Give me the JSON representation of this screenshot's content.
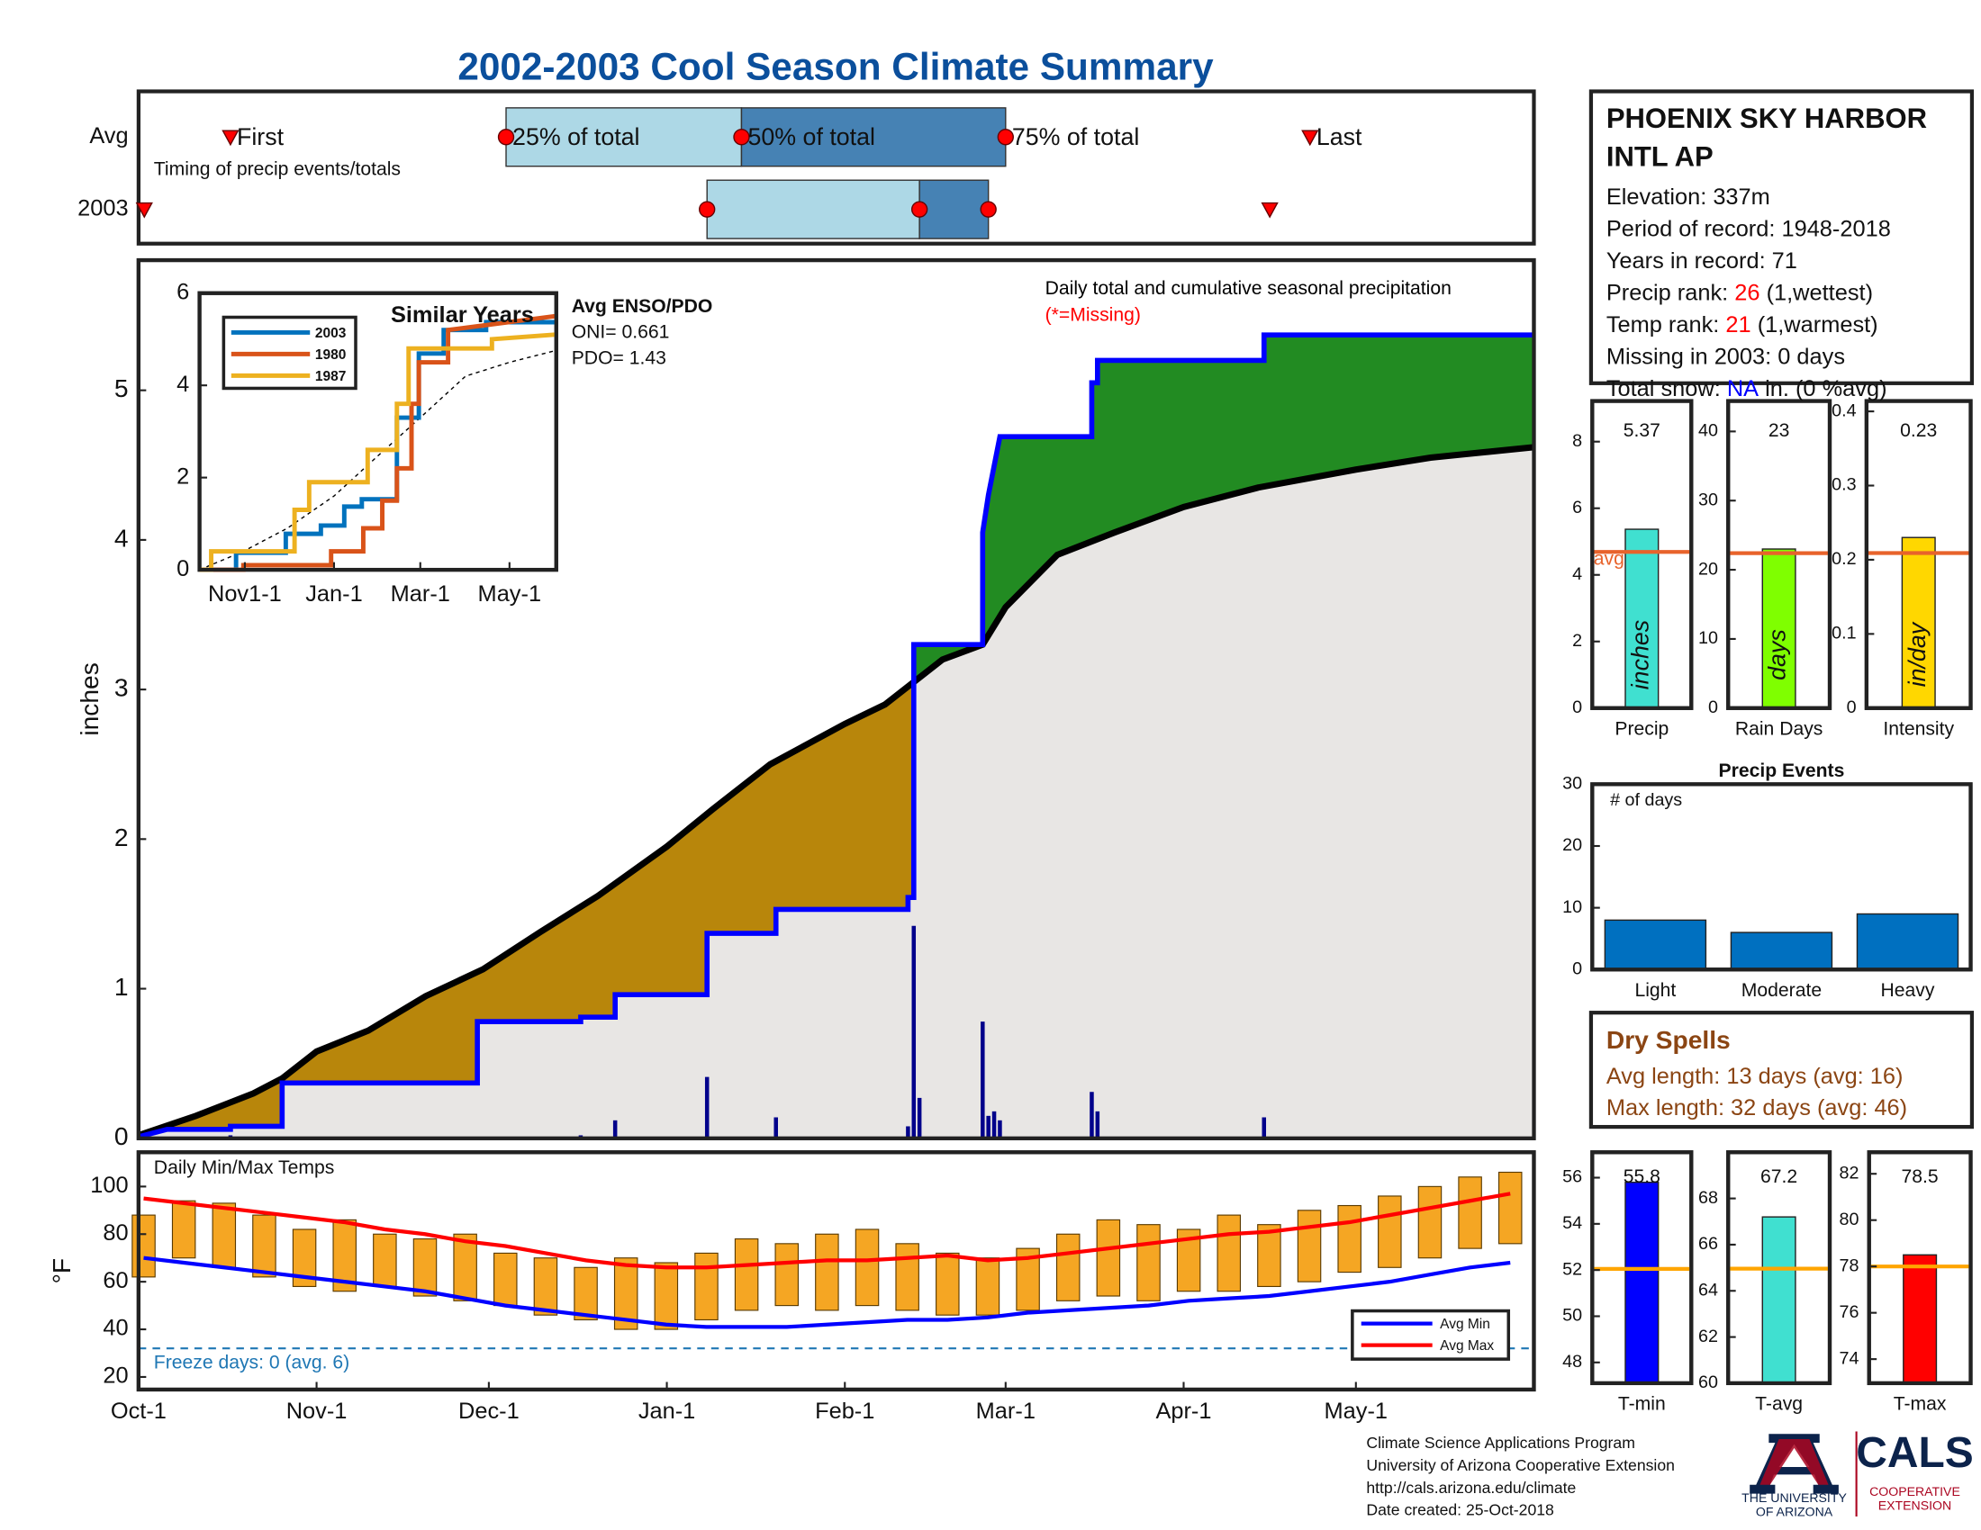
{
  "title": "2002-2003 Cool Season Climate Summary",
  "station": {
    "title": [
      "PHOENIX SKY HARBOR",
      "INTL AP"
    ],
    "lines": [
      [
        {
          "text": "Elevation: 337m"
        }
      ],
      [
        {
          "text": "Period of record: 1948-2018"
        }
      ],
      [
        {
          "text": "Years in record: 71"
        }
      ],
      [
        {
          "text": "Precip rank:"
        },
        {
          "text": "26",
          "color": "#ff0000"
        },
        {
          "text": "(1,wettest)"
        }
      ],
      [
        {
          "text": "Temp rank:"
        },
        {
          "text": "21",
          "color": "#ff0000"
        },
        {
          "text": "(1,warmest)"
        }
      ],
      [
        {
          "text": "Missing in 2003: 0 days"
        }
      ],
      [
        {
          "text": "Total snow:"
        },
        {
          "text": "NA",
          "color": "#0000ff"
        },
        {
          "text": "in. (0 %avg)"
        }
      ]
    ]
  },
  "dry_spells": {
    "title": "Dry Spells",
    "color": "#8b4513",
    "lines": [
      "Avg length: 13 days (avg: 16)",
      "Max length: 32 days (avg: 46)"
    ]
  },
  "footer": [
    "Climate Science Applications Program",
    "University of Arizona Cooperative Extension",
    "http://cals.arizona.edu/climate",
    "Date created: 25-Oct-2018"
  ],
  "logo": {
    "ua": [
      "THE UNIVERSITY",
      "OF ARIZONA"
    ],
    "cals": "CALS",
    "ext": [
      "COOPERATIVE",
      "EXTENSION"
    ]
  },
  "chart_data": [
    {
      "type": "timing",
      "xlim": [
        0,
        243
      ],
      "note": "Timing of precip events/totals",
      "marker_labels": {
        "first": "First",
        "p25": "25% of total",
        "p50": "50% of total",
        "p75": "75% of total",
        "last": "Last"
      },
      "colors": {
        "lower": "#add8e6",
        "upper": "#4682b4",
        "marker": "#ff0000"
      },
      "rows": [
        {
          "name": "Avg",
          "first": 16,
          "p25": 64,
          "p50": 105,
          "p75": 151,
          "last": 204
        },
        {
          "name": "2003",
          "first": 1,
          "p25": 99,
          "p50": 136,
          "p75": 148,
          "last": 197
        }
      ]
    },
    {
      "type": "area",
      "xlim": [
        0,
        243
      ],
      "ylim": [
        0,
        5.87
      ],
      "yticks": [
        0,
        1,
        2,
        3,
        4,
        5
      ],
      "ylabel": "inches",
      "notes": [
        {
          "text": "Daily total and cumulative seasonal precipitation",
          "color": "#000000"
        },
        {
          "text": "(*=Missing)",
          "color": "#ff0000"
        }
      ],
      "colors": {
        "deficit": "#b8860b",
        "surplus": "#228b22",
        "base": "#e8e6e4"
      },
      "series": [
        {
          "color": "#000000",
          "x": [
            0,
            10,
            20,
            25,
            31,
            40,
            50,
            60,
            70,
            80,
            92,
            100,
            110,
            123,
            130,
            135,
            140,
            147,
            151,
            160,
            170,
            182,
            195,
            212,
            225,
            243
          ],
          "values": [
            0.02,
            0.15,
            0.3,
            0.4,
            0.58,
            0.72,
            0.95,
            1.13,
            1.38,
            1.62,
            1.95,
            2.2,
            2.5,
            2.77,
            2.9,
            3.05,
            3.2,
            3.3,
            3.55,
            3.9,
            4.05,
            4.22,
            4.35,
            4.47,
            4.55,
            4.62
          ]
        },
        {
          "color": "#0000ff",
          "x": [
            0,
            5,
            16,
            16,
            25,
            25,
            59,
            59,
            77,
            77,
            83,
            83,
            99,
            99,
            111,
            111,
            134,
            134,
            135,
            135,
            147,
            147,
            148,
            150,
            166,
            166,
            167,
            167,
            196,
            196,
            243
          ],
          "values": [
            0.01,
            0.06,
            0.06,
            0.08,
            0.08,
            0.37,
            0.37,
            0.78,
            0.78,
            0.81,
            0.81,
            0.96,
            0.96,
            1.37,
            1.37,
            1.53,
            1.53,
            1.61,
            1.61,
            3.3,
            3.3,
            4.05,
            4.3,
            4.69,
            4.69,
            5.05,
            5.05,
            5.2,
            5.2,
            5.37,
            5.37
          ]
        }
      ],
      "bars": {
        "color": "#00008b",
        "x": [
          16,
          77,
          83,
          99,
          111,
          134,
          135,
          136,
          147,
          148,
          149,
          150,
          166,
          167,
          196
        ],
        "values": [
          0.02,
          0.02,
          0.12,
          0.41,
          0.14,
          0.08,
          1.42,
          0.27,
          0.78,
          0.15,
          0.18,
          0.12,
          0.31,
          0.18,
          0.14
        ]
      }
    },
    {
      "type": "line",
      "title": "Similar Years",
      "xlim": [
        0,
        244
      ],
      "ylim": [
        0,
        6
      ],
      "yticks": [
        0,
        2,
        4,
        6
      ],
      "xticks": [
        {
          "value": 31,
          "label": "Nov1-1"
        },
        {
          "value": 92,
          "label": "Jan-1"
        },
        {
          "value": 151,
          "label": "Mar-1"
        },
        {
          "value": 212,
          "label": "May-1"
        }
      ],
      "notes": [
        "Avg ENSO/PDO",
        "ONI= 0.661",
        "PDO= 1.43"
      ],
      "series": [
        {
          "name": "2003",
          "color": "#0072bd",
          "x": [
            0,
            25,
            25,
            59,
            59,
            83,
            83,
            99,
            99,
            111,
            111,
            135,
            135,
            150,
            150,
            167,
            167,
            196,
            196,
            243
          ],
          "values": [
            0,
            0,
            0.37,
            0.37,
            0.78,
            0.78,
            0.96,
            0.96,
            1.37,
            1.37,
            1.53,
            1.53,
            3.3,
            3.3,
            4.69,
            4.69,
            5.2,
            5.2,
            5.37,
            5.37
          ]
        },
        {
          "name": "1980",
          "color": "#d95319",
          "x": [
            0,
            30,
            30,
            90,
            90,
            112,
            112,
            125,
            125,
            135,
            135,
            145,
            145,
            150,
            150,
            170,
            170,
            243
          ],
          "values": [
            0,
            0,
            0.1,
            0.1,
            0.4,
            0.4,
            0.9,
            0.9,
            1.5,
            1.5,
            2.2,
            2.2,
            3.6,
            3.6,
            4.5,
            4.5,
            5.2,
            5.5
          ]
        },
        {
          "name": "1987",
          "color": "#edb120",
          "x": [
            0,
            8,
            8,
            65,
            65,
            75,
            75,
            115,
            115,
            135,
            135,
            143,
            143,
            200,
            200,
            243
          ],
          "values": [
            0,
            0,
            0.4,
            0.4,
            1.3,
            1.3,
            1.9,
            1.9,
            2.6,
            2.6,
            3.6,
            3.6,
            4.8,
            4.8,
            5.0,
            5.1
          ]
        }
      ],
      "avg": {
        "color": "#000000",
        "x": [
          0,
          30,
          60,
          92,
          123,
          151,
          182,
          212,
          243
        ],
        "values": [
          0,
          0.4,
          0.9,
          1.6,
          2.5,
          3.3,
          4.2,
          4.5,
          4.75
        ]
      }
    },
    {
      "type": "bar",
      "categories": [
        "Precip"
      ],
      "values": [
        5.37
      ],
      "color": "#40e0d0",
      "unit": "inches",
      "avg": 4.69,
      "avg_color": "#e8632b",
      "avg_label": "avg",
      "ylim": [
        0,
        9.22
      ],
      "yticks": [
        0,
        2,
        4,
        6,
        8
      ]
    },
    {
      "type": "bar",
      "categories": [
        "Rain Days"
      ],
      "values": [
        23
      ],
      "color": "#7fff00",
      "unit": "days",
      "avg": 22.4,
      "avg_color": "#e8632b",
      "ylim": [
        0,
        44.4
      ],
      "yticks": [
        0,
        10,
        20,
        30,
        40
      ]
    },
    {
      "type": "bar",
      "categories": [
        "Intensity"
      ],
      "values": [
        0.23
      ],
      "color": "#ffd700",
      "unit": "in/day",
      "avg": 0.209,
      "avg_color": "#e8632b",
      "ylim": [
        0,
        0.414
      ],
      "yticks": [
        0,
        0.1,
        0.2,
        0.3,
        0.4
      ]
    },
    {
      "type": "bar",
      "title": "Precip Events",
      "ylabel": "# of days",
      "categories": [
        "Light",
        "Moderate",
        "Heavy"
      ],
      "values": [
        8,
        6,
        9
      ],
      "color": "#0070c0",
      "ylim": [
        0,
        30
      ],
      "yticks": [
        0,
        10,
        20,
        30
      ]
    },
    {
      "type": "range",
      "label": "Daily Min/Max Temps",
      "ylabel": "°F",
      "xlim": [
        0,
        243
      ],
      "ylim": [
        14.7,
        114.4
      ],
      "yticks": [
        20,
        40,
        60,
        80,
        100
      ],
      "xticks": [
        {
          "value": 0,
          "label": "Oct-1"
        },
        {
          "value": 31,
          "label": "Nov-1"
        },
        {
          "value": 61,
          "label": "Dec-1"
        },
        {
          "value": 92,
          "label": "Jan-1"
        },
        {
          "value": 123,
          "label": "Feb-1"
        },
        {
          "value": 151,
          "label": "Mar-1"
        },
        {
          "value": 182,
          "label": "Apr-1"
        },
        {
          "value": 212,
          "label": "May-1"
        }
      ],
      "color": "#f5a623",
      "freeze": 32,
      "freeze_label": "Freeze days: 0 (avg. 6)",
      "freeze_color": "#1f77b4",
      "x": [
        0,
        7,
        14,
        21,
        28,
        35,
        42,
        49,
        56,
        63,
        70,
        77,
        84,
        91,
        98,
        105,
        112,
        119,
        126,
        133,
        140,
        147,
        154,
        161,
        168,
        175,
        182,
        189,
        196,
        203,
        210,
        217,
        224,
        231,
        238
      ],
      "high": [
        88,
        94,
        93,
        88,
        82,
        86,
        80,
        78,
        80,
        72,
        70,
        66,
        70,
        68,
        72,
        78,
        76,
        80,
        82,
        76,
        72,
        70,
        74,
        80,
        86,
        84,
        82,
        88,
        84,
        90,
        92,
        96,
        100,
        104,
        106
      ],
      "low": [
        62,
        70,
        66,
        62,
        58,
        56,
        58,
        54,
        52,
        50,
        46,
        44,
        40,
        40,
        44,
        48,
        50,
        48,
        50,
        48,
        46,
        46,
        48,
        52,
        54,
        52,
        56,
        56,
        58,
        60,
        64,
        66,
        70,
        74,
        76
      ],
      "series": [
        {
          "name": "Avg Min",
          "color": "#0000ff",
          "values": [
            70,
            68,
            66,
            64,
            62,
            60,
            58,
            56,
            53,
            50,
            48,
            46,
            44,
            42,
            41,
            41,
            41,
            42,
            43,
            44,
            44,
            45,
            47,
            48,
            49,
            50,
            52,
            53,
            54,
            56,
            58,
            60,
            63,
            66,
            68
          ]
        },
        {
          "name": "Avg Max",
          "color": "#ff0000",
          "values": [
            95,
            93,
            91,
            89,
            87,
            85,
            82,
            80,
            77,
            75,
            72,
            69,
            67,
            66,
            66,
            67,
            68,
            69,
            69,
            70,
            71,
            69,
            70,
            72,
            74,
            76,
            78,
            80,
            81,
            83,
            85,
            88,
            91,
            94,
            97
          ]
        }
      ]
    },
    {
      "type": "bar",
      "categories": [
        "T-min"
      ],
      "values": [
        55.8
      ],
      "color": "#0000ff",
      "avg": 52.05,
      "avg_color": "#ffa500",
      "ylim": [
        47.1,
        57.1
      ],
      "yticks": [
        48,
        50,
        52,
        54,
        56
      ]
    },
    {
      "type": "bar",
      "categories": [
        "T-avg"
      ],
      "values": [
        67.2
      ],
      "color": "#40e0d0",
      "avg": 64.96,
      "avg_color": "#ffa500",
      "ylim": [
        60,
        70
      ],
      "yticks": [
        60,
        62,
        64,
        66,
        68
      ]
    },
    {
      "type": "bar",
      "categories": [
        "T-max"
      ],
      "values": [
        78.5
      ],
      "color": "#ff0000",
      "avg": 78,
      "avg_color": "#ffa500",
      "ylim": [
        72.96,
        82.93
      ],
      "yticks": [
        74,
        76,
        78,
        80,
        82
      ]
    }
  ]
}
